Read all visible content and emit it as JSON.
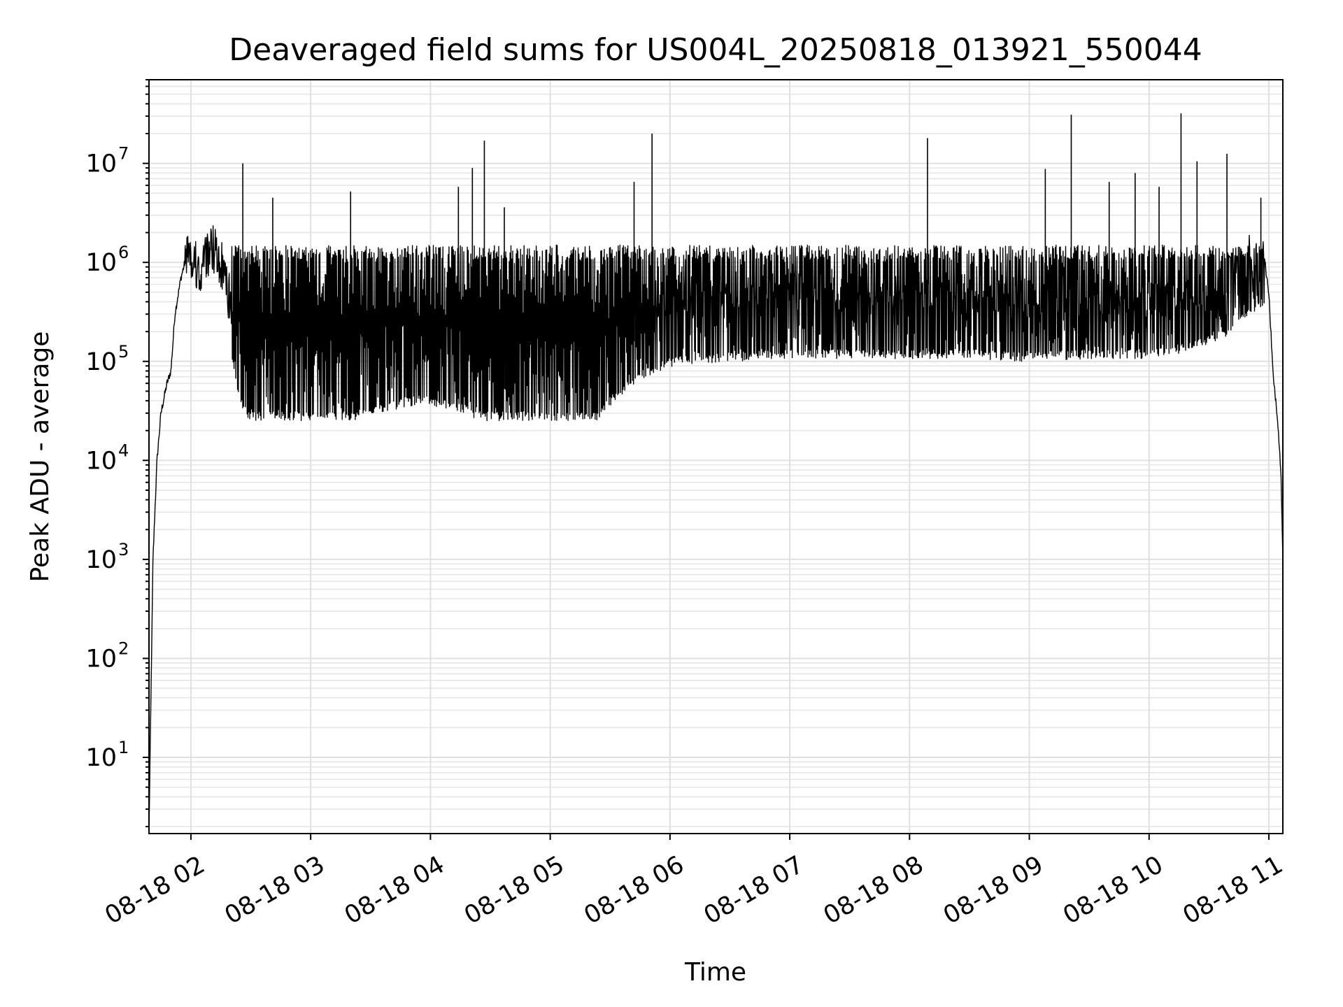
{
  "chart_data": {
    "type": "line",
    "title": "Deaveraged field sums for US004L_20250818_013921_550044",
    "xlabel": "Time",
    "ylabel": "Peak ADU - average",
    "x_ticks": [
      "08-18 02",
      "08-18 03",
      "08-18 04",
      "08-18 05",
      "08-18 06",
      "08-18 07",
      "08-18 08",
      "08-18 09",
      "08-18 10",
      "08-18 11"
    ],
    "y_ticks": [
      {
        "base": "10",
        "exp": "1",
        "value": 10
      },
      {
        "base": "10",
        "exp": "2",
        "value": 100
      },
      {
        "base": "10",
        "exp": "3",
        "value": 1000
      },
      {
        "base": "10",
        "exp": "4",
        "value": 10000
      },
      {
        "base": "10",
        "exp": "5",
        "value": 100000
      },
      {
        "base": "10",
        "exp": "6",
        "value": 1000000
      },
      {
        "base": "10",
        "exp": "7",
        "value": 10000000
      }
    ],
    "xlim": [
      "2025-08-18 01:39",
      "2025-08-18 11:07"
    ],
    "ylim": [
      1.7,
      70000000
    ],
    "yscale": "log",
    "grid": true,
    "line_color": "#000000",
    "series": [
      {
        "x": [
          "2025-08-18 01:39",
          "2025-08-18 01:41",
          "2025-08-18 01:43",
          "2025-08-18 01:45",
          "2025-08-18 01:48",
          "2025-08-18 01:50",
          "2025-08-18 01:52",
          "2025-08-18 01:55",
          "2025-08-18 01:57",
          "2025-08-18 02:00",
          "2025-08-18 02:05",
          "2025-08-18 02:10",
          "2025-08-18 02:15",
          "2025-08-18 02:20",
          "2025-08-18 02:25",
          "2025-08-18 02:30",
          "2025-08-18 02:35",
          "2025-08-18 02:40",
          "2025-08-18 02:45",
          "2025-08-18 02:50",
          "2025-08-18 02:55",
          "2025-08-18 03:00",
          "2025-08-18 03:10",
          "2025-08-18 03:20",
          "2025-08-18 03:30",
          "2025-08-18 03:40",
          "2025-08-18 03:50",
          "2025-08-18 04:00",
          "2025-08-18 04:10",
          "2025-08-18 04:20",
          "2025-08-18 04:30",
          "2025-08-18 04:40",
          "2025-08-18 04:50",
          "2025-08-18 05:00",
          "2025-08-18 05:10",
          "2025-08-18 05:20",
          "2025-08-18 05:30",
          "2025-08-18 05:40",
          "2025-08-18 05:50",
          "2025-08-18 06:00",
          "2025-08-18 06:30",
          "2025-08-18 07:00",
          "2025-08-18 07:30",
          "2025-08-18 08:00",
          "2025-08-18 08:30",
          "2025-08-18 09:00",
          "2025-08-18 09:30",
          "2025-08-18 10:00",
          "2025-08-18 10:20",
          "2025-08-18 10:40",
          "2025-08-18 10:55",
          "2025-08-18 10:58",
          "2025-08-18 11:00",
          "2025-08-18 11:02",
          "2025-08-18 11:04",
          "2025-08-18 11:06",
          "2025-08-18 11:07"
        ],
        "y": [
          1.7,
          1000,
          10000,
          30000,
          60000,
          80000,
          300000,
          700000,
          1000000,
          1000000,
          600000,
          1200000,
          800000,
          300000,
          100000,
          60000,
          50000,
          45000,
          42000,
          40000,
          40000,
          45000,
          60000,
          70000,
          80000,
          90000,
          100000,
          100000,
          90000,
          80000,
          60000,
          50000,
          45000,
          40000,
          40000,
          60000,
          100000,
          150000,
          200000,
          250000,
          280000,
          300000,
          300000,
          300000,
          300000,
          280000,
          300000,
          300000,
          350000,
          500000,
          1000000,
          1000000,
          500000,
          80000,
          30000,
          8000,
          1000
        ]
      }
    ],
    "spikes": [
      {
        "x": "2025-08-18 02:26",
        "y": 10000000
      },
      {
        "x": "2025-08-18 02:41",
        "y": 4500000
      },
      {
        "x": "2025-08-18 03:20",
        "y": 5200000
      },
      {
        "x": "2025-08-18 04:14",
        "y": 5800000
      },
      {
        "x": "2025-08-18 04:21",
        "y": 9000000
      },
      {
        "x": "2025-08-18 04:27",
        "y": 17000000
      },
      {
        "x": "2025-08-18 04:37",
        "y": 3600000
      },
      {
        "x": "2025-08-18 05:42",
        "y": 6500000
      },
      {
        "x": "2025-08-18 05:51",
        "y": 20000000
      },
      {
        "x": "2025-08-18 08:09",
        "y": 18000000
      },
      {
        "x": "2025-08-18 09:08",
        "y": 8800000
      },
      {
        "x": "2025-08-18 09:21",
        "y": 31000000
      },
      {
        "x": "2025-08-18 09:40",
        "y": 6500000
      },
      {
        "x": "2025-08-18 09:53",
        "y": 8000000
      },
      {
        "x": "2025-08-18 10:05",
        "y": 5800000
      },
      {
        "x": "2025-08-18 10:16",
        "y": 32000000
      },
      {
        "x": "2025-08-18 10:24",
        "y": 10500000
      },
      {
        "x": "2025-08-18 10:39",
        "y": 12500000
      },
      {
        "x": "2025-08-18 10:56",
        "y": 4500000
      }
    ]
  }
}
